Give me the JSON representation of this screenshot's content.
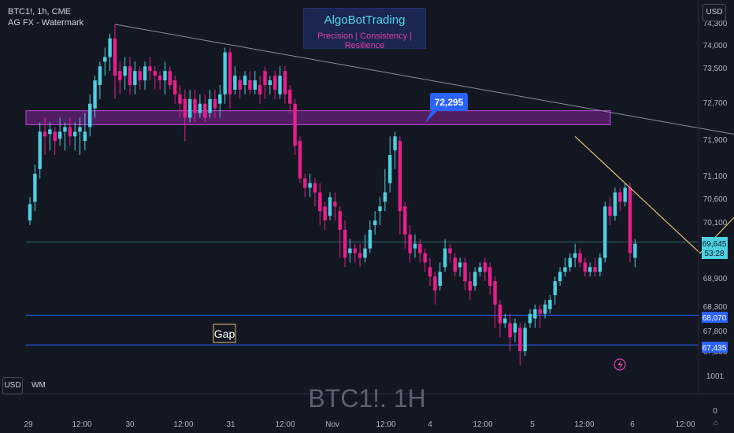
{
  "header": {
    "symbol_line": "BTC1!, 1h, CME",
    "indicator_line": "AG FX - Watermark"
  },
  "brand": {
    "name": "AlgoBotTrading",
    "tagline": "Precision  | Consistency | Resilience"
  },
  "currency_button": "USD",
  "bottom_left": {
    "currency": "USD",
    "wm": "WM"
  },
  "watermark": "BTC1!. 1H",
  "corner_glyph": "⌂",
  "chart_data": {
    "type": "candlestick",
    "title": "BTC1!, 1h, CME",
    "y_ticks": [
      "74,300",
      "74,000",
      "73,500",
      "72,700",
      "71,900",
      "71,100",
      "70,600",
      "70,100",
      "68,900",
      "68,300",
      "67,800",
      "67,300",
      "1001",
      "0"
    ],
    "x_ticks": [
      "29",
      "12:00",
      "30",
      "12:00",
      "31",
      "12:00",
      "Nov",
      "12:00",
      "4",
      "12:00",
      "5",
      "12:00",
      "6",
      "12:00"
    ],
    "candles": [
      [
        70100,
        70450,
        70000,
        70600
      ],
      [
        70500,
        71100,
        70300,
        71300
      ],
      [
        71200,
        72000,
        71000,
        72200
      ],
      [
        72000,
        71900,
        71500,
        72300
      ],
      [
        71950,
        72050,
        71600,
        72200
      ],
      [
        72000,
        71800,
        71500,
        72100
      ],
      [
        71850,
        72000,
        71700,
        72300
      ],
      [
        72000,
        72100,
        71600,
        72200
      ],
      [
        72100,
        71900,
        71700,
        72300
      ],
      [
        71900,
        72000,
        71600,
        72200
      ],
      [
        72000,
        72100,
        71500,
        72300
      ],
      [
        71800,
        72000,
        71600,
        72400
      ],
      [
        72100,
        72600,
        71900,
        72800
      ],
      [
        72500,
        73100,
        72300,
        73200
      ],
      [
        73000,
        73400,
        72700,
        73500
      ],
      [
        73500,
        73600,
        73200,
        73800
      ],
      [
        73600,
        74000,
        73300,
        74100
      ],
      [
        74000,
        73200,
        72700,
        74300
      ],
      [
        73300,
        73100,
        72800,
        73500
      ],
      [
        73200,
        73400,
        72900,
        73600
      ],
      [
        73400,
        73000,
        72800,
        73600
      ],
      [
        73000,
        73300,
        72800,
        73500
      ],
      [
        73300,
        73100,
        72900,
        73400
      ],
      [
        73100,
        73400,
        72900,
        73500
      ],
      [
        73400,
        73300,
        73100,
        73600
      ],
      [
        73300,
        73200,
        72900,
        73400
      ],
      [
        73200,
        73100,
        72900,
        73300
      ],
      [
        73100,
        73300,
        72800,
        73500
      ],
      [
        73300,
        73000,
        72900,
        73400
      ],
      [
        73100,
        72800,
        72600,
        73200
      ],
      [
        72800,
        72600,
        72300,
        73000
      ],
      [
        72700,
        72300,
        71800,
        72900
      ],
      [
        72300,
        72700,
        72200,
        72900
      ],
      [
        72700,
        72400,
        72200,
        72900
      ],
      [
        72400,
        72600,
        72300,
        72800
      ],
      [
        72600,
        72300,
        72200,
        72800
      ],
      [
        72400,
        72700,
        72300,
        72900
      ],
      [
        72700,
        72500,
        72300,
        72900
      ],
      [
        72600,
        72800,
        72300,
        73000
      ],
      [
        72800,
        73700,
        72600,
        73800
      ],
      [
        73700,
        72800,
        72500,
        73800
      ],
      [
        72900,
        73200,
        72800,
        73400
      ],
      [
        73100,
        72900,
        72700,
        73200
      ],
      [
        73000,
        73200,
        72800,
        73300
      ],
      [
        73100,
        72900,
        72800,
        73300
      ],
      [
        72900,
        73100,
        72800,
        73300
      ],
      [
        73000,
        72800,
        72600,
        73200
      ],
      [
        73300,
        73000,
        72700,
        73400
      ],
      [
        73000,
        73100,
        72800,
        73200
      ],
      [
        73200,
        72900,
        72700,
        73300
      ],
      [
        72800,
        73200,
        72700,
        73400
      ],
      [
        73300,
        72800,
        72600,
        73400
      ],
      [
        72900,
        72600,
        72400,
        73000
      ],
      [
        72600,
        71700,
        71500,
        72700
      ],
      [
        71800,
        71000,
        70900,
        71900
      ],
      [
        71000,
        70800,
        70600,
        71100
      ],
      [
        70800,
        70900,
        70600,
        71100
      ],
      [
        70900,
        70700,
        70400,
        71000
      ],
      [
        70700,
        70300,
        70000,
        70900
      ],
      [
        70400,
        70100,
        69900,
        70500
      ],
      [
        70200,
        70600,
        70100,
        70700
      ],
      [
        70500,
        70400,
        70100,
        70700
      ],
      [
        70300,
        69900,
        69300,
        70400
      ],
      [
        69900,
        69300,
        69100,
        70100
      ],
      [
        69400,
        69500,
        69200,
        69700
      ],
      [
        69500,
        69400,
        69200,
        69600
      ],
      [
        69400,
        69300,
        69100,
        69600
      ],
      [
        69300,
        69500,
        69200,
        69800
      ],
      [
        69500,
        69900,
        69400,
        70100
      ],
      [
        70000,
        70100,
        69800,
        70300
      ],
      [
        70300,
        70400,
        70000,
        70600
      ],
      [
        70500,
        70700,
        70300,
        71200
      ],
      [
        70900,
        71500,
        70700,
        71900
      ],
      [
        71600,
        71900,
        71200,
        72000
      ],
      [
        71800,
        70300,
        69800,
        71900
      ],
      [
        70400,
        69800,
        69500,
        70500
      ],
      [
        69800,
        69400,
        69200,
        70000
      ],
      [
        69500,
        69600,
        69300,
        69800
      ],
      [
        69600,
        69400,
        69200,
        69700
      ],
      [
        69400,
        69200,
        69000,
        69500
      ],
      [
        69100,
        68900,
        68700,
        69300
      ],
      [
        68900,
        68600,
        68300,
        69000
      ],
      [
        68700,
        69000,
        68600,
        69200
      ],
      [
        69100,
        69500,
        69000,
        69700
      ],
      [
        69500,
        69400,
        69200,
        69600
      ],
      [
        69300,
        69000,
        68900,
        69400
      ],
      [
        69100,
        69200,
        68900,
        69300
      ],
      [
        69200,
        68800,
        68600,
        69300
      ],
      [
        68800,
        68600,
        68400,
        69000
      ],
      [
        68700,
        69000,
        68600,
        69100
      ],
      [
        69000,
        69100,
        68900,
        69200
      ],
      [
        69200,
        69000,
        68800,
        69300
      ],
      [
        69100,
        68700,
        68500,
        69200
      ],
      [
        68800,
        68300,
        67800,
        68900
      ],
      [
        68300,
        67900,
        67600,
        68400
      ],
      [
        67900,
        68000,
        67800,
        68100
      ],
      [
        67900,
        67600,
        67300,
        68100
      ],
      [
        67700,
        67900,
        67500,
        68000
      ],
      [
        67800,
        67300,
        67000,
        67900
      ],
      [
        67300,
        67800,
        67200,
        67900
      ],
      [
        67900,
        68100,
        67800,
        68200
      ],
      [
        68000,
        68200,
        67800,
        68300
      ],
      [
        68200,
        68100,
        67800,
        68300
      ],
      [
        68100,
        68300,
        68000,
        68400
      ],
      [
        68200,
        68400,
        68100,
        68500
      ],
      [
        68500,
        68800,
        68300,
        68900
      ],
      [
        68800,
        69000,
        68700,
        69100
      ],
      [
        69000,
        69100,
        68900,
        69300
      ],
      [
        69100,
        69300,
        69000,
        69400
      ],
      [
        69300,
        69400,
        69100,
        69600
      ],
      [
        69400,
        69200,
        69100,
        69500
      ],
      [
        69200,
        69000,
        68900,
        69300
      ],
      [
        69000,
        69100,
        68900,
        69200
      ],
      [
        69100,
        69000,
        68900,
        69300
      ],
      [
        69000,
        69300,
        68900,
        69400
      ],
      [
        69300,
        70400,
        69200,
        70500
      ],
      [
        70400,
        70200,
        70000,
        70600
      ],
      [
        70200,
        70700,
        70100,
        70800
      ],
      [
        70700,
        70500,
        70300,
        70800
      ],
      [
        70500,
        70800,
        70400,
        70900
      ],
      [
        70800,
        69400,
        69200,
        70900
      ],
      [
        69300,
        69600,
        69100,
        69700
      ]
    ],
    "current_price": "69,645",
    "countdown": "53:28",
    "callout_price": "72,295",
    "zone": {
      "from": 72150,
      "to": 72450
    },
    "trendline": {
      "from": [
        17,
        74300
      ],
      "to": [
        180,
        71200
      ]
    },
    "horizontal_lines": [
      {
        "price": 69640,
        "label": "",
        "color": "#2a6b66"
      },
      {
        "price": 68070,
        "label": "68,070",
        "color": "#2962ff"
      },
      {
        "price": 67435,
        "label": "67,435",
        "color": "#2962ff"
      }
    ],
    "path_annotation": [
      [
        109,
        71900
      ],
      [
        134,
        69400
      ],
      [
        142,
        70300
      ],
      [
        166,
        67800
      ]
    ],
    "gap_label": "Gap",
    "grid": false,
    "colors": {
      "up": "#4dd0e1",
      "down": "#e91e8c",
      "zone": "#9c27b0",
      "callout": "#2962ff",
      "path": "#e8c06e"
    }
  }
}
